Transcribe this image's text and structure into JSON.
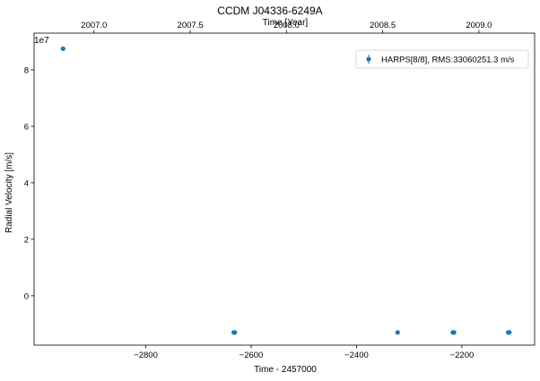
{
  "chart_data": {
    "type": "scatter",
    "title": "CCDM J04336-6249A",
    "xlabel": "Time - 2457000",
    "ylabel": "Radial Velocity [m/s]",
    "top_xlabel": "Time [Year]",
    "y_offset_label": "1e7",
    "xlim": [
      -3012,
      -2062
    ],
    "ylim": [
      -1.75,
      9.3
    ],
    "y_scale": 10000000,
    "x_ticks": [
      -2800,
      -2600,
      -2400,
      -2200
    ],
    "x_tick_labels": [
      "−2800",
      "−2600",
      "−2400",
      "−2200"
    ],
    "y_ticks": [
      0,
      2,
      4,
      6,
      8
    ],
    "y_tick_labels": [
      "0",
      "2",
      "4",
      "6",
      "8"
    ],
    "top_ticks": [
      2007.0,
      2007.5,
      2008.0,
      2008.5,
      2009.0
    ],
    "top_tick_labels": [
      "2007.0",
      "2007.5",
      "2008.0",
      "2008.5",
      "2009.0"
    ],
    "top_axis_bjd_offset": 2457000,
    "legend": {
      "label": "HARPS[8/8], RMS:33060251.3 m/s",
      "position": "top-right"
    },
    "grid": false,
    "series": [
      {
        "name": "HARPS[8/8], RMS:33060251.3 m/s",
        "color": "#1f77b4",
        "points": [
          {
            "x": -2957,
            "y": 87500000
          },
          {
            "x": -2633,
            "y": -13000000
          },
          {
            "x": -2631,
            "y": -13000000
          },
          {
            "x": -2322,
            "y": -13000000
          },
          {
            "x": -2217,
            "y": -13000000
          },
          {
            "x": -2215,
            "y": -13000000
          },
          {
            "x": -2112,
            "y": -13000000
          },
          {
            "x": -2110,
            "y": -13000000
          }
        ]
      }
    ]
  }
}
